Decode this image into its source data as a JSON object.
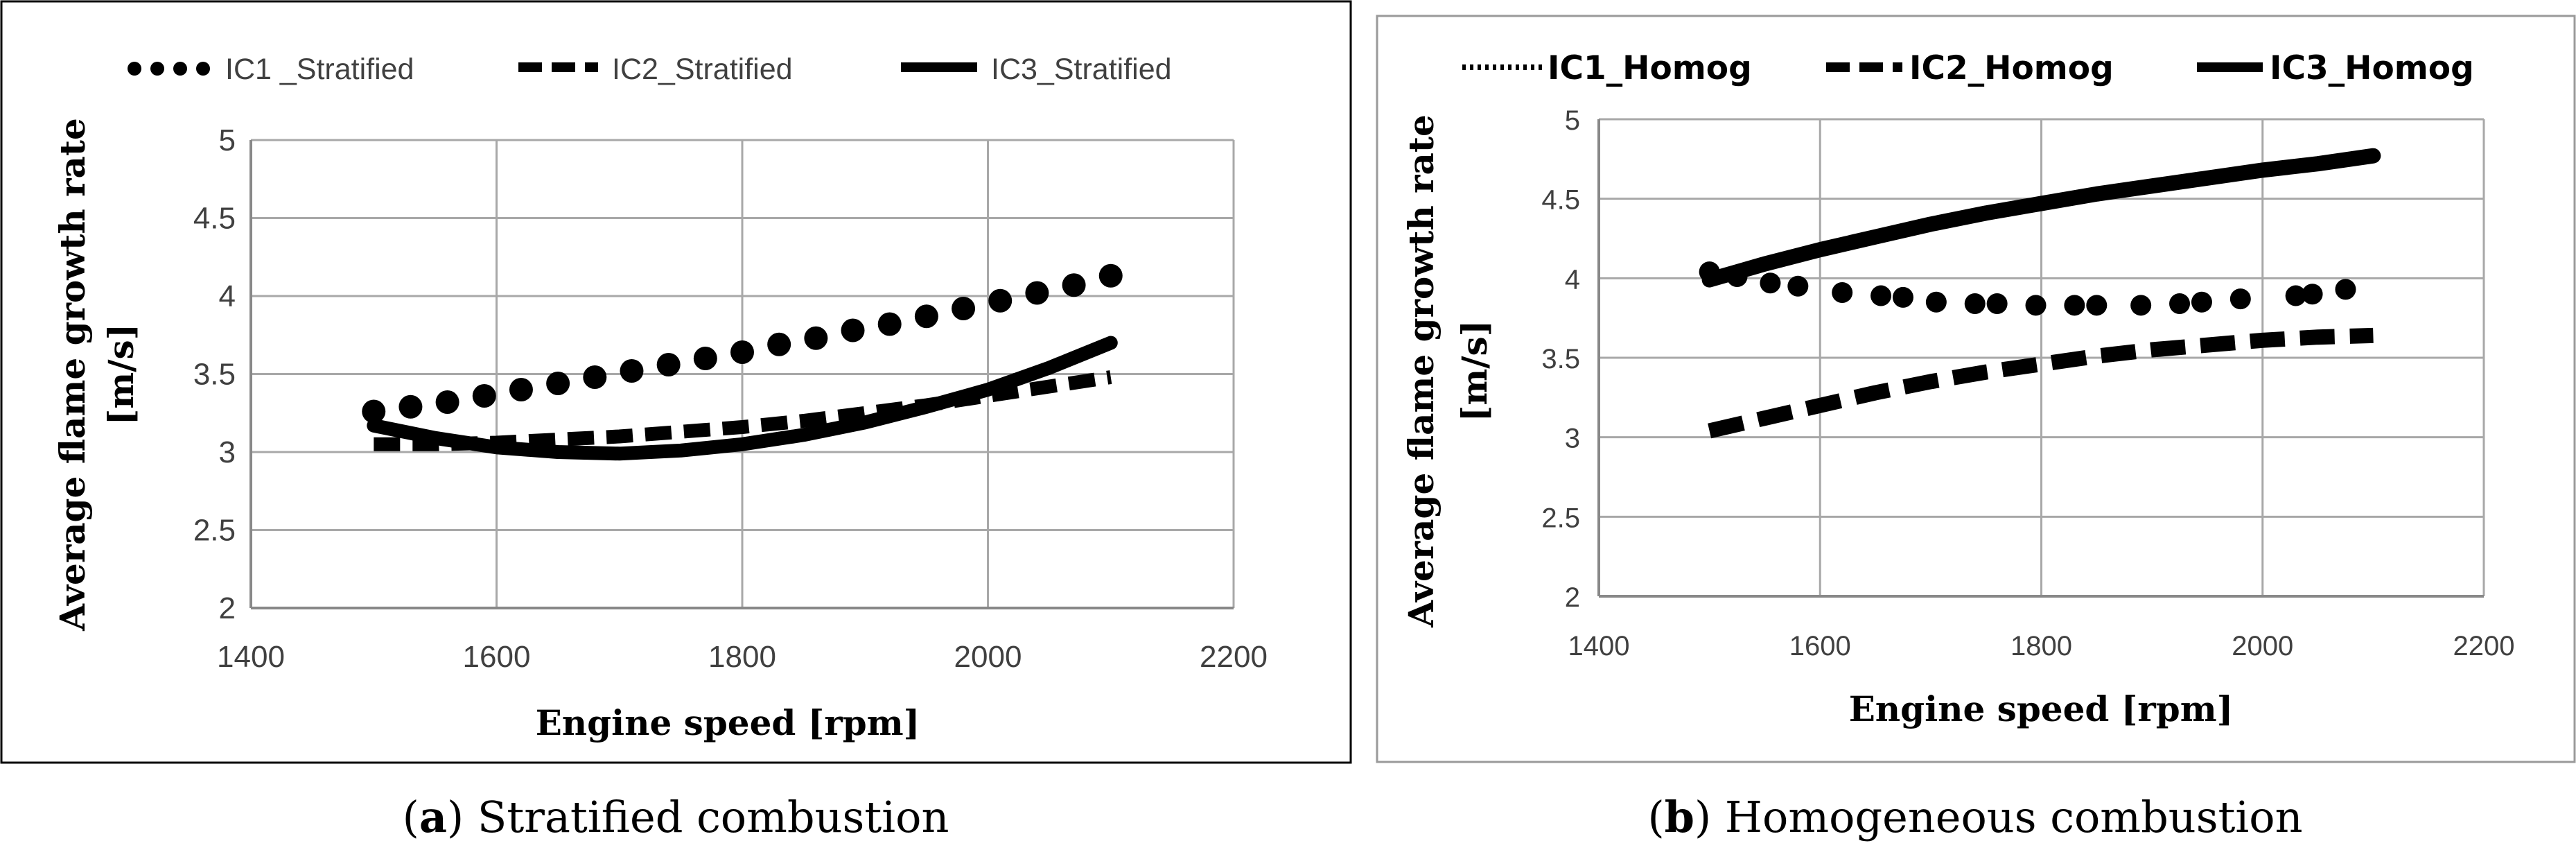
{
  "chart_data": [
    {
      "id": "a",
      "type": "line",
      "title": "",
      "xlabel": "Engine speed  [rpm]",
      "ylabel": "Average flame growth rate",
      "ylabel_unit": "[m/s]",
      "xlim": [
        1400,
        2200
      ],
      "ylim": [
        2,
        5
      ],
      "xticks": [
        1400,
        1600,
        1800,
        2000,
        2200
      ],
      "yticks": [
        2,
        2.5,
        3,
        3.5,
        4,
        4.5,
        5
      ],
      "ytick_labels": [
        "2",
        "2.5",
        "3",
        "3.5",
        "4",
        "4.5",
        "5"
      ],
      "grid": true,
      "legend_position": "top",
      "caption_label": "a",
      "caption_text": "Stratified combustion",
      "series": [
        {
          "name": "IC1 _Stratified",
          "style": "dotted",
          "x": [
            1500,
            1530,
            1560,
            1590,
            1620,
            1650,
            1680,
            1710,
            1740,
            1770,
            1800,
            1830,
            1860,
            1890,
            1920,
            1950,
            1980,
            2010,
            2040,
            2070,
            2100
          ],
          "values": [
            3.26,
            3.29,
            3.32,
            3.36,
            3.4,
            3.44,
            3.48,
            3.52,
            3.56,
            3.6,
            3.64,
            3.69,
            3.73,
            3.78,
            3.82,
            3.87,
            3.92,
            3.97,
            4.02,
            4.07,
            4.13
          ]
        },
        {
          "name": "IC2_Stratified",
          "style": "dashed",
          "x": [
            1500,
            1550,
            1600,
            1650,
            1700,
            1750,
            1800,
            1850,
            1900,
            1950,
            2000,
            2050,
            2100
          ],
          "values": [
            3.05,
            3.05,
            3.06,
            3.08,
            3.1,
            3.13,
            3.16,
            3.2,
            3.25,
            3.3,
            3.36,
            3.42,
            3.48
          ]
        },
        {
          "name": "IC3_Stratified",
          "style": "solid",
          "x": [
            1500,
            1550,
            1600,
            1650,
            1700,
            1750,
            1800,
            1850,
            1900,
            1950,
            2000,
            2050,
            2100
          ],
          "values": [
            3.17,
            3.09,
            3.03,
            3.0,
            2.99,
            3.01,
            3.05,
            3.11,
            3.19,
            3.29,
            3.4,
            3.54,
            3.7
          ]
        }
      ]
    },
    {
      "id": "b",
      "type": "line",
      "title": "",
      "xlabel": "Engine speed  [rpm]",
      "ylabel": "Average flame growth rate",
      "ylabel_unit": "[m/s]",
      "xlim": [
        1400,
        2200
      ],
      "ylim": [
        2,
        5
      ],
      "xticks": [
        1400,
        1600,
        1800,
        2000,
        2200
      ],
      "yticks": [
        2,
        2.5,
        3,
        3.5,
        4,
        4.5,
        5
      ],
      "ytick_labels": [
        "2",
        "2.5",
        "3",
        "3.5",
        "4",
        "4.5",
        "5"
      ],
      "grid": true,
      "legend_position": "top",
      "caption_label": "b",
      "caption_text": "Homogeneous combustion",
      "series": [
        {
          "name": "IC1_Homog",
          "style": "dotted",
          "x": [
            1500,
            1525,
            1555,
            1580,
            1620,
            1655,
            1675,
            1705,
            1740,
            1760,
            1795,
            1830,
            1850,
            1890,
            1925,
            1945,
            1980,
            2030,
            2045,
            2075
          ],
          "values": [
            4.04,
            4.01,
            3.97,
            3.95,
            3.91,
            3.89,
            3.88,
            3.85,
            3.84,
            3.84,
            3.83,
            3.83,
            3.83,
            3.83,
            3.84,
            3.85,
            3.87,
            3.89,
            3.9,
            3.93
          ]
        },
        {
          "name": "IC2_Homog",
          "style": "dashed",
          "x": [
            1500,
            1550,
            1600,
            1650,
            1700,
            1750,
            1800,
            1850,
            1900,
            1950,
            2000,
            2050,
            2100
          ],
          "values": [
            3.04,
            3.12,
            3.2,
            3.28,
            3.35,
            3.41,
            3.46,
            3.51,
            3.55,
            3.58,
            3.61,
            3.63,
            3.64
          ]
        },
        {
          "name": "IC3_Homog",
          "style": "solid",
          "x": [
            1500,
            1550,
            1600,
            1650,
            1700,
            1750,
            1800,
            1850,
            1900,
            1950,
            2000,
            2050,
            2100
          ],
          "values": [
            3.99,
            4.09,
            4.18,
            4.26,
            4.34,
            4.41,
            4.47,
            4.53,
            4.58,
            4.63,
            4.68,
            4.72,
            4.77
          ]
        }
      ]
    }
  ]
}
